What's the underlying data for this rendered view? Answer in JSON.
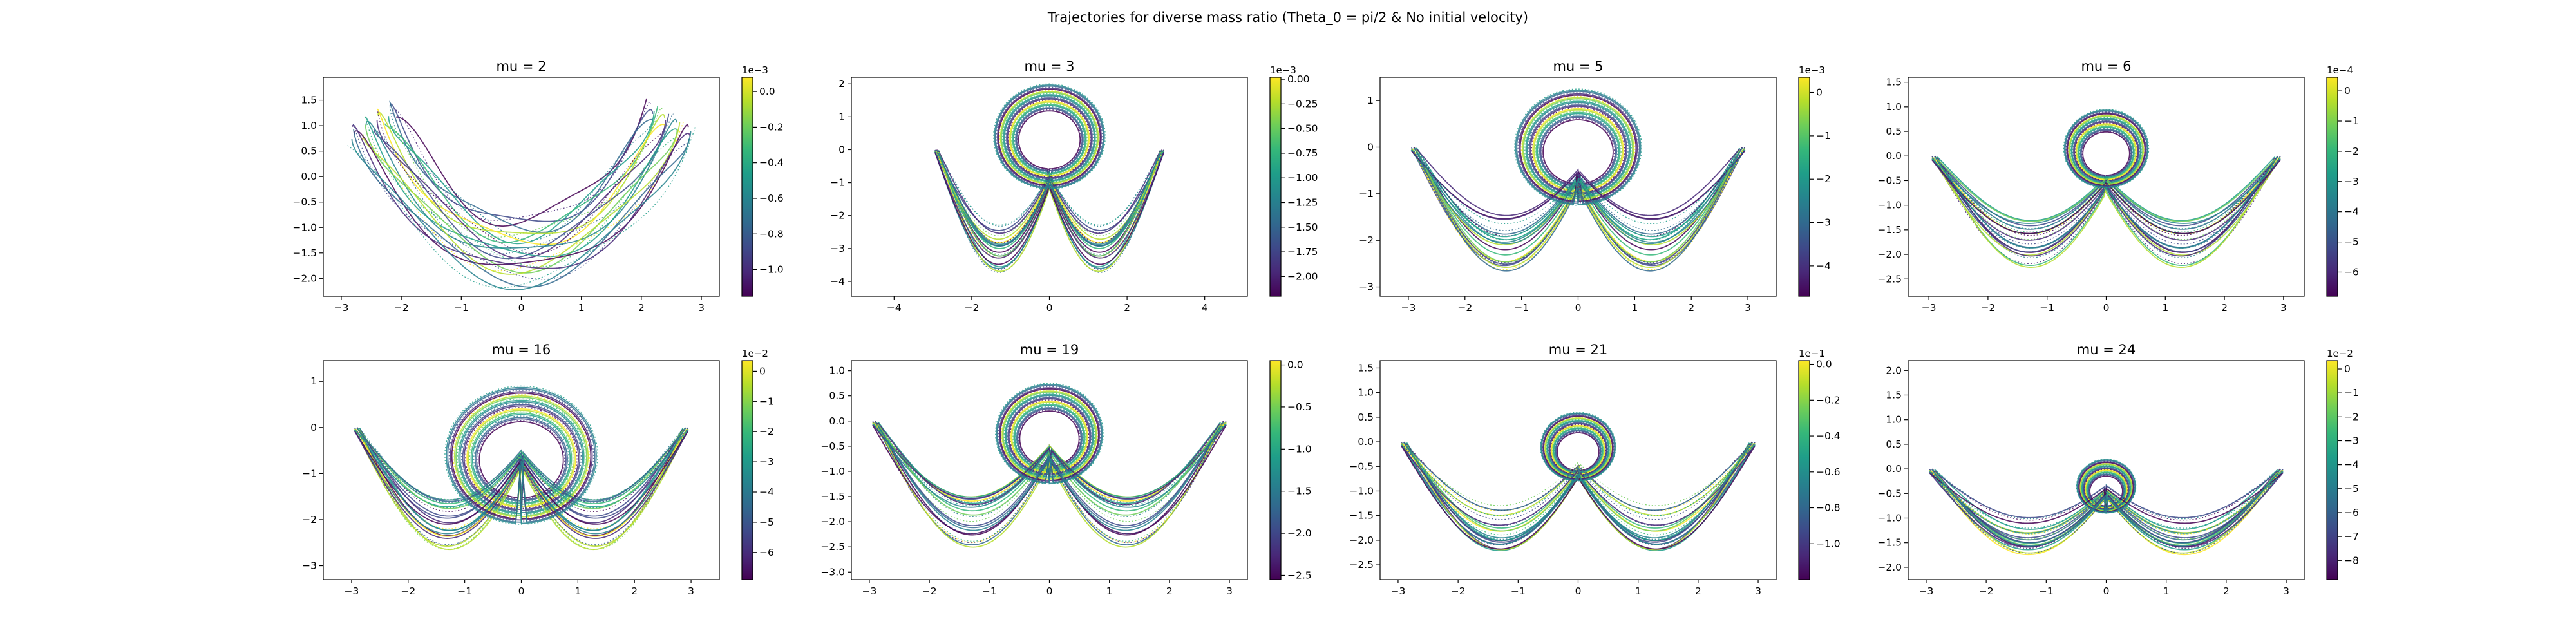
{
  "figure_title": "Trajectories for diverse mass ratio (Theta_0 = pi/2  &  No initial velocity)",
  "colormap": [
    "#440154",
    "#482878",
    "#3e4989",
    "#31688e",
    "#26828e",
    "#1f9e89",
    "#35b779",
    "#6ece58",
    "#b5de2b",
    "#fde725"
  ],
  "chart_data": [
    {
      "type": "line",
      "title": "mu = 2",
      "mu": 2,
      "xlim": [
        -3.3,
        3.3
      ],
      "ylim": [
        -2.35,
        1.95
      ],
      "xticks": [
        -3,
        -2,
        -1,
        0,
        1,
        2,
        3
      ],
      "xtick_labels": [
        "−3",
        "−2",
        "−1",
        "0",
        "1",
        "2",
        "3"
      ],
      "yticks": [
        -2.0,
        -1.5,
        -1.0,
        -0.5,
        0.0,
        0.5,
        1.0,
        1.5
      ],
      "ytick_labels": [
        "−2.0",
        "−1.5",
        "−1.0",
        "−0.5",
        "0.0",
        "0.5",
        "1.0",
        "1.5"
      ],
      "colorbar": {
        "range": [
          -1.15,
          0.08
        ],
        "ticks": [
          -1.0,
          -0.8,
          -0.6,
          -0.4,
          -0.2,
          0.0
        ],
        "tick_labels": [
          "−1.0",
          "−0.8",
          "−0.6",
          "−0.4",
          "−0.2",
          "0.0"
        ],
        "offset": "1e−3"
      }
    },
    {
      "type": "line",
      "title": "mu = 3",
      "mu": 3,
      "xlim": [
        -5.1,
        5.1
      ],
      "ylim": [
        -4.45,
        2.2
      ],
      "xticks": [
        -4,
        -2,
        0,
        2,
        4
      ],
      "xtick_labels": [
        "−4",
        "−2",
        "0",
        "2",
        "4"
      ],
      "yticks": [
        -4,
        -3,
        -2,
        -1,
        0,
        1,
        2
      ],
      "ytick_labels": [
        "−4",
        "−3",
        "−2",
        "−1",
        "0",
        "1",
        "2"
      ],
      "colorbar": {
        "range": [
          -2.2,
          0.02
        ],
        "ticks": [
          -2.0,
          -1.75,
          -1.5,
          -1.25,
          -1.0,
          -0.75,
          -0.5,
          -0.25,
          0.0
        ],
        "tick_labels": [
          "−2.00",
          "−1.75",
          "−1.50",
          "−1.25",
          "−1.00",
          "−0.75",
          "−0.50",
          "−0.25",
          "0.00"
        ],
        "offset": "1e−3"
      }
    },
    {
      "type": "line",
      "title": "mu = 5",
      "mu": 5,
      "xlim": [
        -3.5,
        3.5
      ],
      "ylim": [
        -3.2,
        1.5
      ],
      "xticks": [
        -3,
        -2,
        -1,
        0,
        1,
        2,
        3
      ],
      "xtick_labels": [
        "−3",
        "−2",
        "−1",
        "0",
        "1",
        "2",
        "3"
      ],
      "yticks": [
        -3,
        -2,
        -1,
        0,
        1
      ],
      "ytick_labels": [
        "−3",
        "−2",
        "−1",
        "0",
        "1"
      ],
      "colorbar": {
        "range": [
          -4.7,
          0.35
        ],
        "ticks": [
          -4,
          -3,
          -2,
          -1,
          0
        ],
        "tick_labels": [
          "−4",
          "−3",
          "−2",
          "−1",
          "0"
        ],
        "offset": "1e−3"
      }
    },
    {
      "type": "line",
      "title": "mu = 6",
      "mu": 6,
      "xlim": [
        -3.35,
        3.35
      ],
      "ylim": [
        -2.85,
        1.6
      ],
      "xticks": [
        -3,
        -2,
        -1,
        0,
        1,
        2,
        3
      ],
      "xtick_labels": [
        "−3",
        "−2",
        "−1",
        "0",
        "1",
        "2",
        "3"
      ],
      "yticks": [
        -2.5,
        -2.0,
        -1.5,
        -1.0,
        -0.5,
        0.0,
        0.5,
        1.0,
        1.5
      ],
      "ytick_labels": [
        "−2.5",
        "−2.0",
        "−1.5",
        "−1.0",
        "−0.5",
        "0.0",
        "0.5",
        "1.0",
        "1.5"
      ],
      "colorbar": {
        "range": [
          -6.8,
          0.45
        ],
        "ticks": [
          -6,
          -5,
          -4,
          -3,
          -2,
          -1,
          0
        ],
        "tick_labels": [
          "−6",
          "−5",
          "−4",
          "−3",
          "−2",
          "−1",
          "0"
        ],
        "offset": "1e−4"
      }
    },
    {
      "type": "line",
      "title": "mu = 16",
      "mu": 16,
      "xlim": [
        -3.5,
        3.5
      ],
      "ylim": [
        -3.3,
        1.45
      ],
      "xticks": [
        -3,
        -2,
        -1,
        0,
        1,
        2,
        3
      ],
      "xtick_labels": [
        "−3",
        "−2",
        "−1",
        "0",
        "1",
        "2",
        "3"
      ],
      "yticks": [
        -3,
        -2,
        -1,
        0,
        1
      ],
      "ytick_labels": [
        "−3",
        "−2",
        "−1",
        "0",
        "1"
      ],
      "colorbar": {
        "range": [
          -6.9,
          0.35
        ],
        "ticks": [
          -6,
          -5,
          -4,
          -3,
          -2,
          -1,
          0
        ],
        "tick_labels": [
          "−6",
          "−5",
          "−4",
          "−3",
          "−2",
          "−1",
          "0"
        ],
        "offset": "1e−2"
      }
    },
    {
      "type": "line",
      "title": "mu = 19",
      "mu": 19,
      "xlim": [
        -3.3,
        3.3
      ],
      "ylim": [
        -3.15,
        1.2
      ],
      "xticks": [
        -3,
        -2,
        -1,
        0,
        1,
        2,
        3
      ],
      "xtick_labels": [
        "−3",
        "−2",
        "−1",
        "0",
        "1",
        "2",
        "3"
      ],
      "yticks": [
        -3.0,
        -2.5,
        -2.0,
        -1.5,
        -1.0,
        -0.5,
        0.0,
        0.5,
        1.0
      ],
      "ytick_labels": [
        "−3.0",
        "−2.5",
        "−2.0",
        "−1.5",
        "−1.0",
        "−0.5",
        "0.0",
        "0.5",
        "1.0"
      ],
      "colorbar": {
        "range": [
          -2.55,
          0.05
        ],
        "ticks": [
          -2.5,
          -2.0,
          -1.5,
          -1.0,
          -0.5,
          0.0
        ],
        "tick_labels": [
          "−2.5",
          "−2.0",
          "−1.5",
          "−1.0",
          "−0.5",
          "0.0"
        ],
        "offset": ""
      }
    },
    {
      "type": "line",
      "title": "mu = 21",
      "mu": 21,
      "xlim": [
        -3.3,
        3.3
      ],
      "ylim": [
        -2.8,
        1.65
      ],
      "xticks": [
        -3,
        -2,
        -1,
        0,
        1,
        2,
        3
      ],
      "xtick_labels": [
        "−3",
        "−2",
        "−1",
        "0",
        "1",
        "2",
        "3"
      ],
      "yticks": [
        -2.5,
        -2.0,
        -1.5,
        -1.0,
        -0.5,
        0.0,
        0.5,
        1.0,
        1.5
      ],
      "ytick_labels": [
        "−2.5",
        "−2.0",
        "−1.5",
        "−1.0",
        "−0.5",
        "0.0",
        "0.5",
        "1.0",
        "1.5"
      ],
      "colorbar": {
        "range": [
          -1.2,
          0.02
        ],
        "ticks": [
          -1.0,
          -0.8,
          -0.6,
          -0.4,
          -0.2,
          0.0
        ],
        "tick_labels": [
          "−1.0",
          "−0.8",
          "−0.6",
          "−0.4",
          "−0.2",
          "0.0"
        ],
        "offset": "1e−1"
      }
    },
    {
      "type": "line",
      "title": "mu = 24",
      "mu": 24,
      "xlim": [
        -3.3,
        3.3
      ],
      "ylim": [
        -2.25,
        2.2
      ],
      "xticks": [
        -3,
        -2,
        -1,
        0,
        1,
        2,
        3
      ],
      "xtick_labels": [
        "−3",
        "−2",
        "−1",
        "0",
        "1",
        "2",
        "3"
      ],
      "yticks": [
        -2.0,
        -1.5,
        -1.0,
        -0.5,
        0.0,
        0.5,
        1.0,
        1.5,
        2.0
      ],
      "ytick_labels": [
        "−2.0",
        "−1.5",
        "−1.0",
        "−0.5",
        "0.0",
        "0.5",
        "1.0",
        "1.5",
        "2.0"
      ],
      "colorbar": {
        "range": [
          -8.8,
          0.35
        ],
        "ticks": [
          -8,
          -7,
          -6,
          -5,
          -4,
          -3,
          -2,
          -1,
          0
        ],
        "tick_labels": [
          "−8",
          "−7",
          "−6",
          "−5",
          "−4",
          "−3",
          "−2",
          "−1",
          "0"
        ],
        "offset": "1e−2"
      }
    }
  ]
}
